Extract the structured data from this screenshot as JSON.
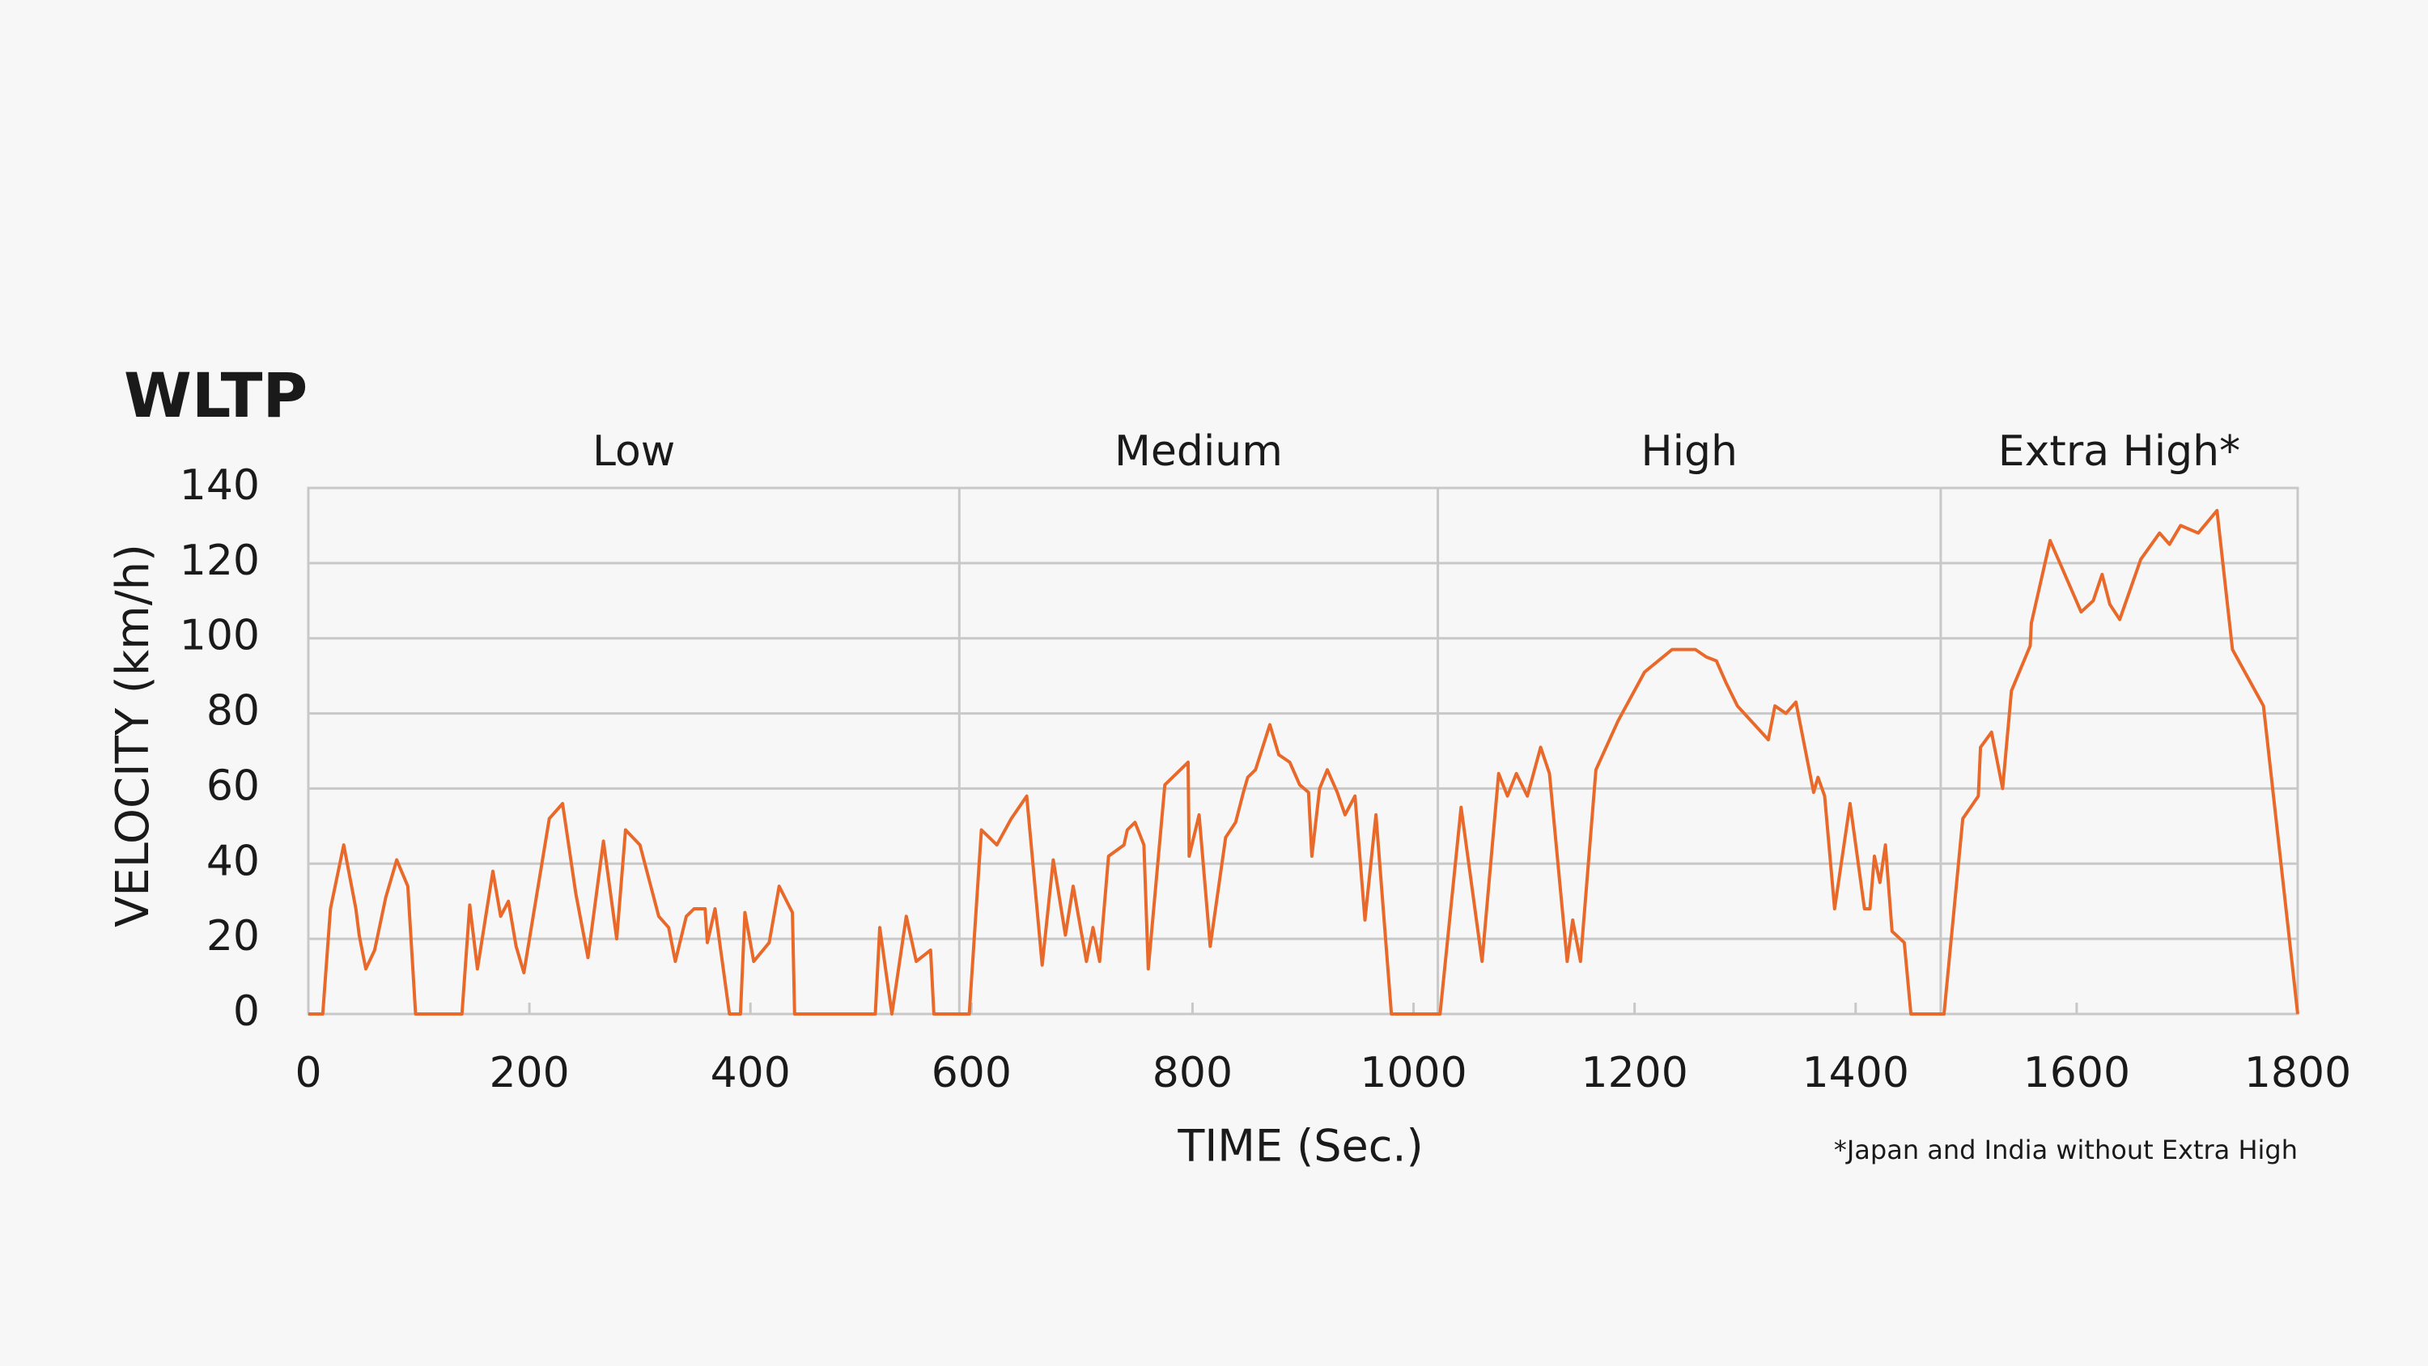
{
  "chart_data": {
    "type": "line",
    "title": "WLTP",
    "x_label": "TIME (Sec.)",
    "y_label": "VELOCITY (km/h)",
    "footnote": "*Japan and India without Extra High",
    "phases": [
      {
        "name": "Low",
        "start": 0,
        "end": 589
      },
      {
        "name": "Medium",
        "start": 589,
        "end": 1022
      },
      {
        "name": "High",
        "start": 1022,
        "end": 1477
      },
      {
        "name": "Extra High*",
        "start": 1477,
        "end": 1800
      }
    ],
    "color": "#e8692a",
    "x": [
      0,
      13,
      20,
      32,
      43,
      46,
      52,
      60,
      70,
      80,
      90,
      97,
      139,
      146,
      153,
      167,
      174,
      181,
      188,
      195,
      218,
      230,
      242,
      253,
      267,
      279,
      287,
      300,
      317,
      326,
      332,
      342,
      349,
      359,
      361,
      368,
      381,
      391,
      395,
      403,
      417,
      426,
      438,
      440,
      513,
      517,
      528,
      541,
      550,
      563,
      566,
      598,
      609,
      623,
      636,
      650,
      664,
      674,
      685,
      692,
      704,
      710,
      716,
      724,
      738,
      741,
      748,
      756,
      760,
      775,
      796,
      797,
      806,
      816,
      830,
      839,
      846,
      850,
      857,
      870,
      878,
      888,
      897,
      905,
      908,
      915,
      922,
      931,
      938,
      947,
      956,
      966,
      980,
      1024,
      1043,
      1062,
      1077,
      1085,
      1093,
      1103,
      1115,
      1123,
      1139,
      1144,
      1151,
      1165,
      1185,
      1209,
      1234,
      1255,
      1265,
      1274,
      1283,
      1293,
      1321,
      1327,
      1337,
      1346,
      1362,
      1366,
      1372,
      1381,
      1395,
      1408,
      1413,
      1417,
      1422,
      1427,
      1433,
      1444,
      1450,
      1480,
      1497,
      1511,
      1513,
      1523,
      1533,
      1541,
      1558,
      1559,
      1576,
      1604,
      1615,
      1623,
      1630,
      1639,
      1658,
      1675,
      1684,
      1694,
      1710,
      1727,
      1741,
      1769,
      1800
    ],
    "values": [
      0,
      0,
      28,
      45,
      28,
      21,
      12,
      17,
      31,
      41,
      34,
      0,
      0,
      29,
      12,
      38,
      26,
      30,
      18,
      11,
      52,
      56,
      32,
      15,
      46,
      20,
      49,
      45,
      26,
      23,
      14,
      26,
      28,
      28,
      19,
      28,
      0,
      0,
      27,
      14,
      19,
      34,
      27,
      0,
      0,
      23,
      0,
      26,
      14,
      17,
      0,
      0,
      49,
      45,
      52,
      58,
      13,
      41,
      21,
      34,
      14,
      23,
      14,
      42,
      45,
      49,
      51,
      45,
      12,
      61,
      67,
      42,
      53,
      18,
      47,
      51,
      59,
      63,
      65,
      77,
      69,
      67,
      61,
      59,
      42,
      60,
      65,
      59,
      53,
      58,
      25,
      53,
      0,
      0,
      55,
      14,
      64,
      58,
      64,
      58,
      71,
      64,
      14,
      25,
      14,
      65,
      78,
      91,
      97,
      97,
      95,
      94,
      88,
      82,
      73,
      82,
      80,
      83,
      59,
      63,
      58,
      28,
      56,
      28,
      28,
      42,
      35,
      45,
      22,
      19,
      0,
      0,
      52,
      58,
      71,
      75,
      60,
      86,
      98,
      104,
      126,
      107,
      110,
      117,
      109,
      105,
      121,
      128,
      125,
      130,
      128,
      134,
      97,
      82,
      0
    ],
    "xlim": [
      0,
      1800
    ],
    "xticks": [
      0,
      200,
      400,
      600,
      800,
      1000,
      1200,
      1400,
      1600,
      1800
    ],
    "ylim": [
      0,
      140
    ],
    "yticks": [
      0,
      20,
      40,
      60,
      80,
      100,
      120,
      140
    ],
    "grid": true
  }
}
